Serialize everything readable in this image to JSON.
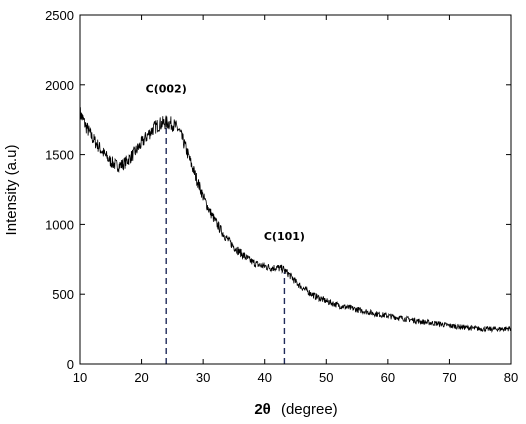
{
  "chart_data": {
    "type": "line",
    "title": "",
    "xlabel_symbol": "2θ",
    "xlabel_unit": "(degree)",
    "ylabel": "Intensity (a.u)",
    "xlim": [
      10,
      80
    ],
    "ylim": [
      0,
      2500
    ],
    "xticks": [
      "10",
      "20",
      "30",
      "40",
      "50",
      "60",
      "70",
      "80"
    ],
    "yticks": [
      "0",
      "500",
      "1000",
      "1500",
      "2000",
      "2500"
    ],
    "grid": false,
    "legend": "none",
    "series": [
      {
        "color": "#000000",
        "x": [
          10,
          11,
          12,
          13,
          14,
          15,
          16,
          17,
          18,
          19,
          20,
          21,
          22,
          23,
          24,
          25,
          26,
          27,
          28,
          29,
          30,
          31,
          32,
          33,
          34,
          35,
          36,
          37,
          38,
          39,
          40,
          41,
          42,
          43,
          44,
          45,
          46,
          47,
          48,
          49,
          50,
          52,
          54,
          56,
          58,
          60,
          62,
          64,
          66,
          68,
          70,
          72,
          74,
          76,
          78,
          80
        ],
        "y": [
          1800,
          1700,
          1620,
          1560,
          1500,
          1450,
          1420,
          1430,
          1470,
          1520,
          1580,
          1640,
          1690,
          1720,
          1730,
          1720,
          1680,
          1570,
          1440,
          1320,
          1200,
          1100,
          1020,
          950,
          890,
          840,
          800,
          760,
          730,
          710,
          700,
          690,
          690,
          680,
          640,
          590,
          550,
          520,
          490,
          470,
          450,
          420,
          400,
          380,
          360,
          345,
          330,
          315,
          300,
          290,
          275,
          265,
          255,
          250,
          250,
          255
        ]
      }
    ],
    "annotations": [
      {
        "label": "C(002)",
        "x": 24
      },
      {
        "label": "C(101)",
        "x": 43.2
      }
    ],
    "marker_line_style": "dashed",
    "marker_line_color": "#1f2a5a"
  }
}
